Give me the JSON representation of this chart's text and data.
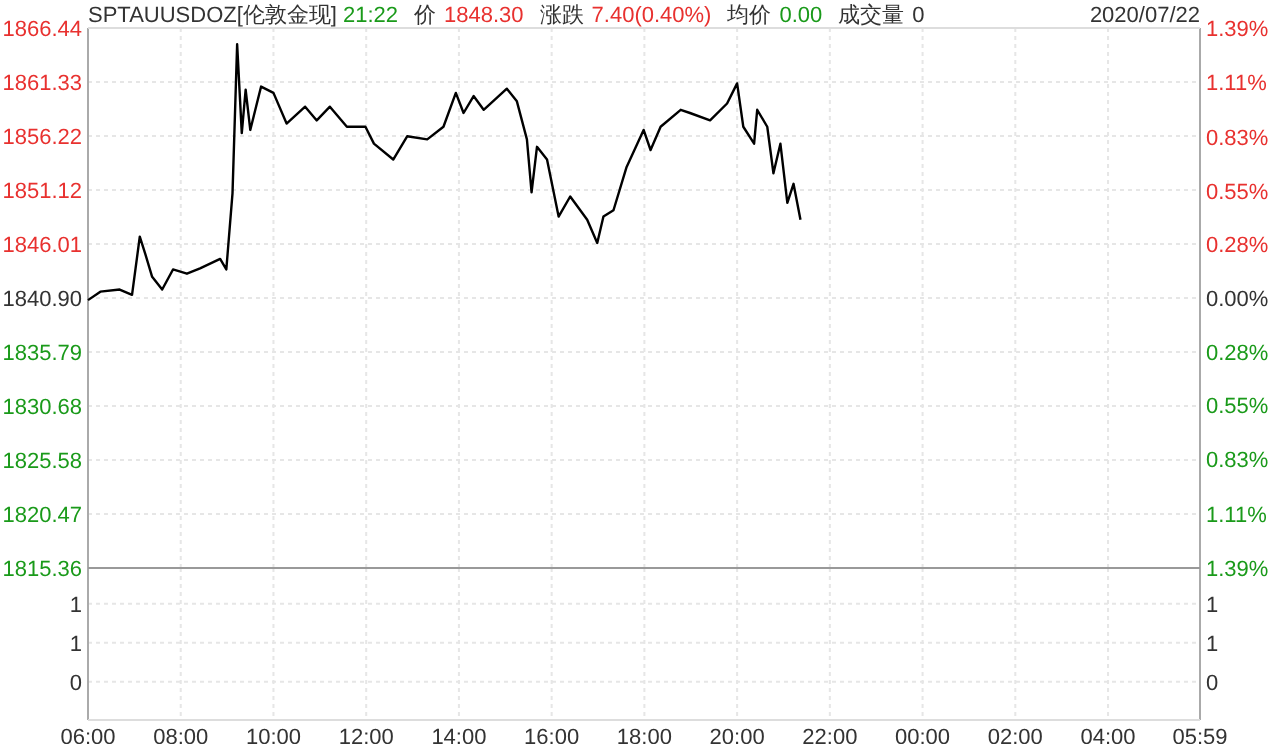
{
  "chart_data": [
    {
      "type": "line",
      "title": "SPTAUUSDOZ[伦敦金现]",
      "annotations": [
        "21:22",
        "价",
        "1848.30",
        "涨跌",
        "7.40(0.40%)",
        "均价",
        "0.00",
        "成交量",
        "0",
        "2020/07/22"
      ],
      "x": [
        "2020-07-22T06:00",
        "2020-07-22T06:16",
        "2020-07-22T06:41",
        "2020-07-22T06:57",
        "2020-07-22T07:07",
        "2020-07-22T07:14",
        "2020-07-22T07:23",
        "2020-07-22T07:36",
        "2020-07-22T07:50",
        "2020-07-22T08:08",
        "2020-07-22T08:25",
        "2020-07-22T08:51",
        "2020-07-22T08:59",
        "2020-07-22T09:07",
        "2020-07-22T09:13",
        "2020-07-22T09:19",
        "2020-07-22T09:24",
        "2020-07-22T09:30",
        "2020-07-22T09:44",
        "2020-07-22T10:00",
        "2020-07-22T10:17",
        "2020-07-22T10:41",
        "2020-07-22T10:56",
        "2020-07-22T11:13",
        "2020-07-22T11:35",
        "2020-07-22T11:59",
        "2020-07-22T12:10",
        "2020-07-22T12:35",
        "2020-07-22T12:53",
        "2020-07-22T13:19",
        "2020-07-22T13:40",
        "2020-07-22T13:56",
        "2020-07-22T14:06",
        "2020-07-22T14:19",
        "2020-07-22T14:32",
        "2020-07-22T15:02",
        "2020-07-22T15:15",
        "2020-07-22T15:28",
        "2020-07-22T15:34",
        "2020-07-22T15:41",
        "2020-07-22T15:54",
        "2020-07-22T16:09",
        "2020-07-22T16:24",
        "2020-07-22T16:46",
        "2020-07-22T16:59",
        "2020-07-22T17:07",
        "2020-07-22T17:20",
        "2020-07-22T17:37",
        "2020-07-22T17:59",
        "2020-07-22T18:08",
        "2020-07-22T18:21",
        "2020-07-22T18:47",
        "2020-07-22T18:59",
        "2020-07-22T19:25",
        "2020-07-22T19:47",
        "2020-07-22T20:00",
        "2020-07-22T20:08",
        "2020-07-22T20:22",
        "2020-07-22T20:26",
        "2020-07-22T20:39",
        "2020-07-22T20:47",
        "2020-07-22T20:56",
        "2020-07-22T21:05",
        "2020-07-22T21:13",
        "2020-07-22T21:22"
      ],
      "series": [
        {
          "color": "#000000",
          "values": [
            1840.7,
            1841.5,
            1841.7,
            1841.2,
            1846.7,
            1845.1,
            1842.9,
            1841.7,
            1843.6,
            1843.2,
            1843.7,
            1844.6,
            1843.6,
            1850.8,
            1864.9,
            1856.5,
            1860.6,
            1856.8,
            1860.9,
            1860.3,
            1857.4,
            1859.0,
            1857.7,
            1859.0,
            1857.1,
            1857.1,
            1855.5,
            1854.0,
            1856.2,
            1855.9,
            1857.1,
            1860.3,
            1858.4,
            1860.0,
            1858.7,
            1860.7,
            1859.5,
            1855.9,
            1850.9,
            1855.2,
            1854.0,
            1848.6,
            1850.5,
            1848.3,
            1846.1,
            1848.6,
            1849.2,
            1853.3,
            1856.8,
            1854.9,
            1857.1,
            1858.7,
            1858.4,
            1857.7,
            1859.3,
            1861.2,
            1857.1,
            1855.5,
            1858.7,
            1857.1,
            1852.7,
            1855.5,
            1849.9,
            1851.7,
            1848.3
          ]
        }
      ],
      "xlim": [
        "2020-07-22T06:00",
        "2020-07-23T05:59"
      ],
      "xticks": [
        {
          "value": "2020-07-22T06:00",
          "label": null
        },
        {
          "value": "2020-07-22T08:00",
          "label": null
        },
        {
          "value": "2020-07-22T10:00",
          "label": null
        },
        {
          "value": "2020-07-22T12:00",
          "label": null
        },
        {
          "value": "2020-07-22T14:00",
          "label": null
        },
        {
          "value": "2020-07-22T16:00",
          "label": null
        },
        {
          "value": "2020-07-22T18:00",
          "label": null
        },
        {
          "value": "2020-07-22T20:00",
          "label": null
        },
        {
          "value": "2020-07-22T22:00",
          "label": null
        },
        {
          "value": "2020-07-23T00:00",
          "label": null
        },
        {
          "value": "2020-07-23T02:00",
          "label": null
        },
        {
          "value": "2020-07-23T04:00",
          "label": null
        },
        {
          "value": "2020-07-23T05:59",
          "label": null
        }
      ],
      "ylim": [
        1815.36,
        1866.44
      ],
      "yticks": [
        {
          "value": 1815.36,
          "label": "1815.36"
        },
        {
          "value": 1820.47,
          "label": "1820.47"
        },
        {
          "value": 1825.58,
          "label": "1825.58"
        },
        {
          "value": 1830.68,
          "label": "1830.68"
        },
        {
          "value": 1835.79,
          "label": "1835.79"
        },
        {
          "value": 1840.9,
          "label": "1840.90"
        },
        {
          "value": 1846.01,
          "label": "1846.01"
        },
        {
          "value": 1851.12,
          "label": "1851.12"
        },
        {
          "value": 1856.22,
          "label": "1856.22"
        },
        {
          "value": 1861.33,
          "label": "1861.33"
        },
        {
          "value": 1866.44,
          "label": "1866.44"
        }
      ],
      "y2lim": [
        -1.39,
        1.39
      ],
      "y2ticks": [
        {
          "value": -1.39,
          "label": "1.39%"
        },
        {
          "value": -1.11,
          "label": "1.11%"
        },
        {
          "value": -0.83,
          "label": "0.83%"
        },
        {
          "value": -0.55,
          "label": "0.55%"
        },
        {
          "value": -0.28,
          "label": "0.28%"
        },
        {
          "value": 0,
          "label": "0.00%"
        },
        {
          "value": 0.28,
          "label": "0.28%"
        },
        {
          "value": 0.55,
          "label": "0.55%"
        },
        {
          "value": 0.83,
          "label": "0.83%"
        },
        {
          "value": 1.11,
          "label": "1.11%"
        },
        {
          "value": 1.39,
          "label": "1.39%"
        }
      ],
      "tick_labels": "y",
      "grid": true
    },
    {
      "type": "bar",
      "xlim": [
        "2020-07-22T06:00",
        "2020-07-23T05:59"
      ],
      "xticks": [
        {
          "value": "2020-07-22T06:00",
          "label": "06:00"
        },
        {
          "value": "2020-07-22T08:00",
          "label": "08:00"
        },
        {
          "value": "2020-07-22T10:00",
          "label": "10:00"
        },
        {
          "value": "2020-07-22T12:00",
          "label": "12:00"
        },
        {
          "value": "2020-07-22T14:00",
          "label": "14:00"
        },
        {
          "value": "2020-07-22T16:00",
          "label": "16:00"
        },
        {
          "value": "2020-07-22T18:00",
          "label": "18:00"
        },
        {
          "value": "2020-07-22T20:00",
          "label": "20:00"
        },
        {
          "value": "2020-07-22T22:00",
          "label": "22:00"
        },
        {
          "value": "2020-07-23T00:00",
          "label": "00:00"
        },
        {
          "value": "2020-07-23T02:00",
          "label": "02:00"
        },
        {
          "value": "2020-07-23T04:00",
          "label": "04:00"
        },
        {
          "value": "2020-07-23T05:59",
          "label": "05:59"
        }
      ],
      "ylim": [
        -0.49,
        1.46
      ],
      "yticks": [
        {
          "value": 0,
          "label": "0"
        },
        {
          "value": 0.5,
          "label": "1"
        },
        {
          "value": 1,
          "label": "1"
        }
      ],
      "y2lim": [
        -0.49,
        1.46
      ],
      "y2ticks": [
        {
          "value": 0,
          "label": "0"
        },
        {
          "value": 0.5,
          "label": "1"
        },
        {
          "value": 1,
          "label": "1"
        }
      ],
      "grid": true
    }
  ]
}
